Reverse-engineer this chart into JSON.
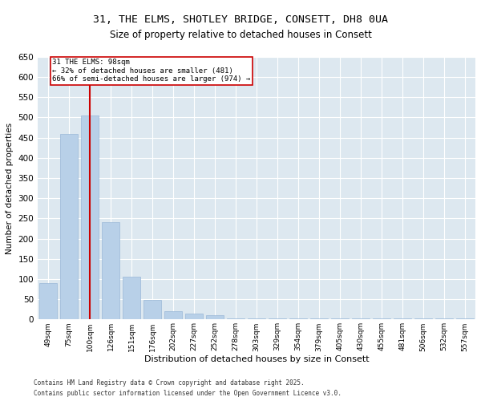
{
  "title_line1": "31, THE ELMS, SHOTLEY BRIDGE, CONSETT, DH8 0UA",
  "title_line2": "Size of property relative to detached houses in Consett",
  "xlabel": "Distribution of detached houses by size in Consett",
  "ylabel": "Number of detached properties",
  "categories": [
    "49sqm",
    "75sqm",
    "100sqm",
    "126sqm",
    "151sqm",
    "176sqm",
    "202sqm",
    "227sqm",
    "252sqm",
    "278sqm",
    "303sqm",
    "329sqm",
    "354sqm",
    "379sqm",
    "405sqm",
    "430sqm",
    "455sqm",
    "481sqm",
    "506sqm",
    "532sqm",
    "557sqm"
  ],
  "values": [
    90,
    460,
    505,
    240,
    105,
    48,
    20,
    15,
    10,
    3,
    3,
    2,
    2,
    2,
    3,
    2,
    2,
    3,
    2,
    3,
    2
  ],
  "bar_color": "#b8d0e8",
  "bar_edge_color": "#9ab8d8",
  "vline_x": 2,
  "vline_color": "#cc0000",
  "annotation_text": "31 THE ELMS: 98sqm\n← 32% of detached houses are smaller (481)\n66% of semi-detached houses are larger (974) →",
  "annotation_box_color": "#cc0000",
  "ylim": [
    0,
    650
  ],
  "yticks": [
    0,
    50,
    100,
    150,
    200,
    250,
    300,
    350,
    400,
    450,
    500,
    550,
    600,
    650
  ],
  "footer_line1": "Contains HM Land Registry data © Crown copyright and database right 2025.",
  "footer_line2": "Contains public sector information licensed under the Open Government Licence v3.0.",
  "fig_bg": "#ffffff",
  "plot_bg": "#dde8f0"
}
